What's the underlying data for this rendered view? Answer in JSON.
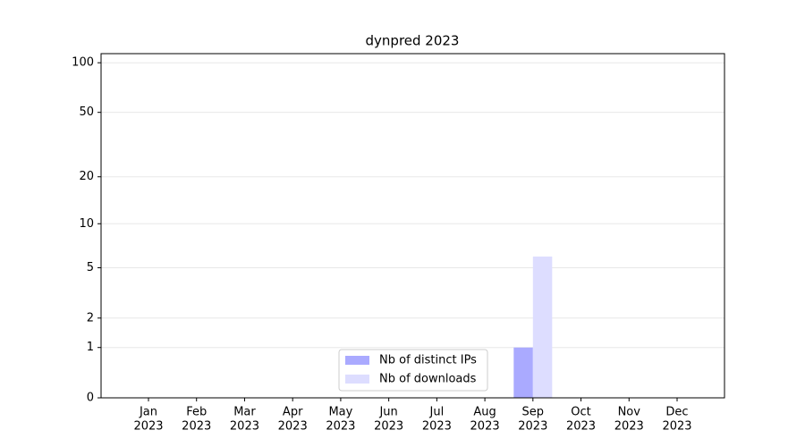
{
  "chart_data": {
    "type": "bar",
    "title": "dynpred 2023",
    "categories": [
      [
        "Jan",
        "2023"
      ],
      [
        "Feb",
        "2023"
      ],
      [
        "Mar",
        "2023"
      ],
      [
        "Apr",
        "2023"
      ],
      [
        "May",
        "2023"
      ],
      [
        "Jun",
        "2023"
      ],
      [
        "Jul",
        "2023"
      ],
      [
        "Aug",
        "2023"
      ],
      [
        "Sep",
        "2023"
      ],
      [
        "Oct",
        "2023"
      ],
      [
        "Nov",
        "2023"
      ],
      [
        "Dec",
        "2023"
      ]
    ],
    "series": [
      {
        "name": "Nb of distinct IPs",
        "color": "#aaaaff",
        "values": [
          0,
          0,
          0,
          0,
          0,
          0,
          0,
          0,
          1,
          0,
          0,
          0
        ]
      },
      {
        "name": "Nb of downloads",
        "color": "#ddddff",
        "values": [
          0,
          0,
          0,
          0,
          0,
          0,
          0,
          0,
          6,
          0,
          0,
          0
        ]
      }
    ],
    "y_scale": "log1p",
    "ylim": [
      0,
      113.5
    ],
    "yticks": [
      0,
      1,
      2,
      5,
      10,
      20,
      50,
      100
    ],
    "grid": true,
    "legend": "lower center"
  }
}
